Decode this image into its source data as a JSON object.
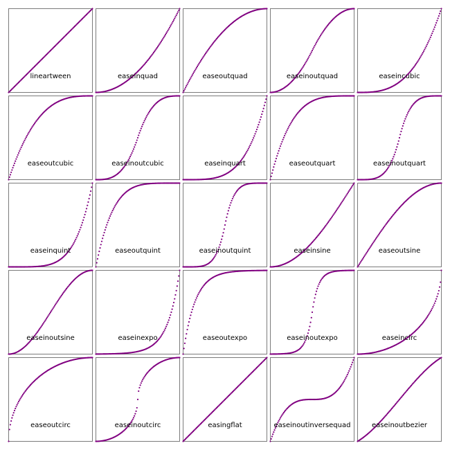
{
  "chart_data": {
    "type": "scatter",
    "layout": {
      "rows": 5,
      "cols": 5
    },
    "x_range": [
      0,
      1
    ],
    "y_range": [
      0,
      1
    ],
    "samples_per_panel": 101,
    "point_color": "#800080",
    "axes": {
      "ticks": false,
      "grid": false
    },
    "panels": [
      {
        "label": "lineartween",
        "function": "linear"
      },
      {
        "label": "easeinquad",
        "function": "easeinquad"
      },
      {
        "label": "easeoutquad",
        "function": "easeoutquad"
      },
      {
        "label": "easeinoutquad",
        "function": "easeinoutquad"
      },
      {
        "label": "easeincubic",
        "function": "easeincubic"
      },
      {
        "label": "easeoutcubic",
        "function": "easeoutcubic"
      },
      {
        "label": "easeinoutcubic",
        "function": "easeinoutcubic"
      },
      {
        "label": "easeinquart",
        "function": "easeinquart"
      },
      {
        "label": "easeoutquart",
        "function": "easeoutquart"
      },
      {
        "label": "easeinoutquart",
        "function": "easeinoutquart"
      },
      {
        "label": "easeinquint",
        "function": "easeinquint"
      },
      {
        "label": "easeoutquint",
        "function": "easeoutquint"
      },
      {
        "label": "easeinoutquint",
        "function": "easeinoutquint"
      },
      {
        "label": "easeinsine",
        "function": "easeinsine"
      },
      {
        "label": "easeoutsine",
        "function": "easeoutsine"
      },
      {
        "label": "easeinoutsine",
        "function": "easeinoutsine"
      },
      {
        "label": "easeinexpo",
        "function": "easeinexpo"
      },
      {
        "label": "easeoutexpo",
        "function": "easeoutexpo"
      },
      {
        "label": "easeinoutexpo",
        "function": "easeinoutexpo"
      },
      {
        "label": "easeincirc",
        "function": "easeincirc"
      },
      {
        "label": "easeoutcirc",
        "function": "easeoutcirc"
      },
      {
        "label": "easeinoutcirc",
        "function": "easeinoutcirc"
      },
      {
        "label": "easingflat",
        "function": "linear"
      },
      {
        "label": "easeinoutinversequad",
        "function": "easeinoutinversequad"
      },
      {
        "label": "easeinoutbezier",
        "function": "easeinoutbezier"
      }
    ]
  }
}
